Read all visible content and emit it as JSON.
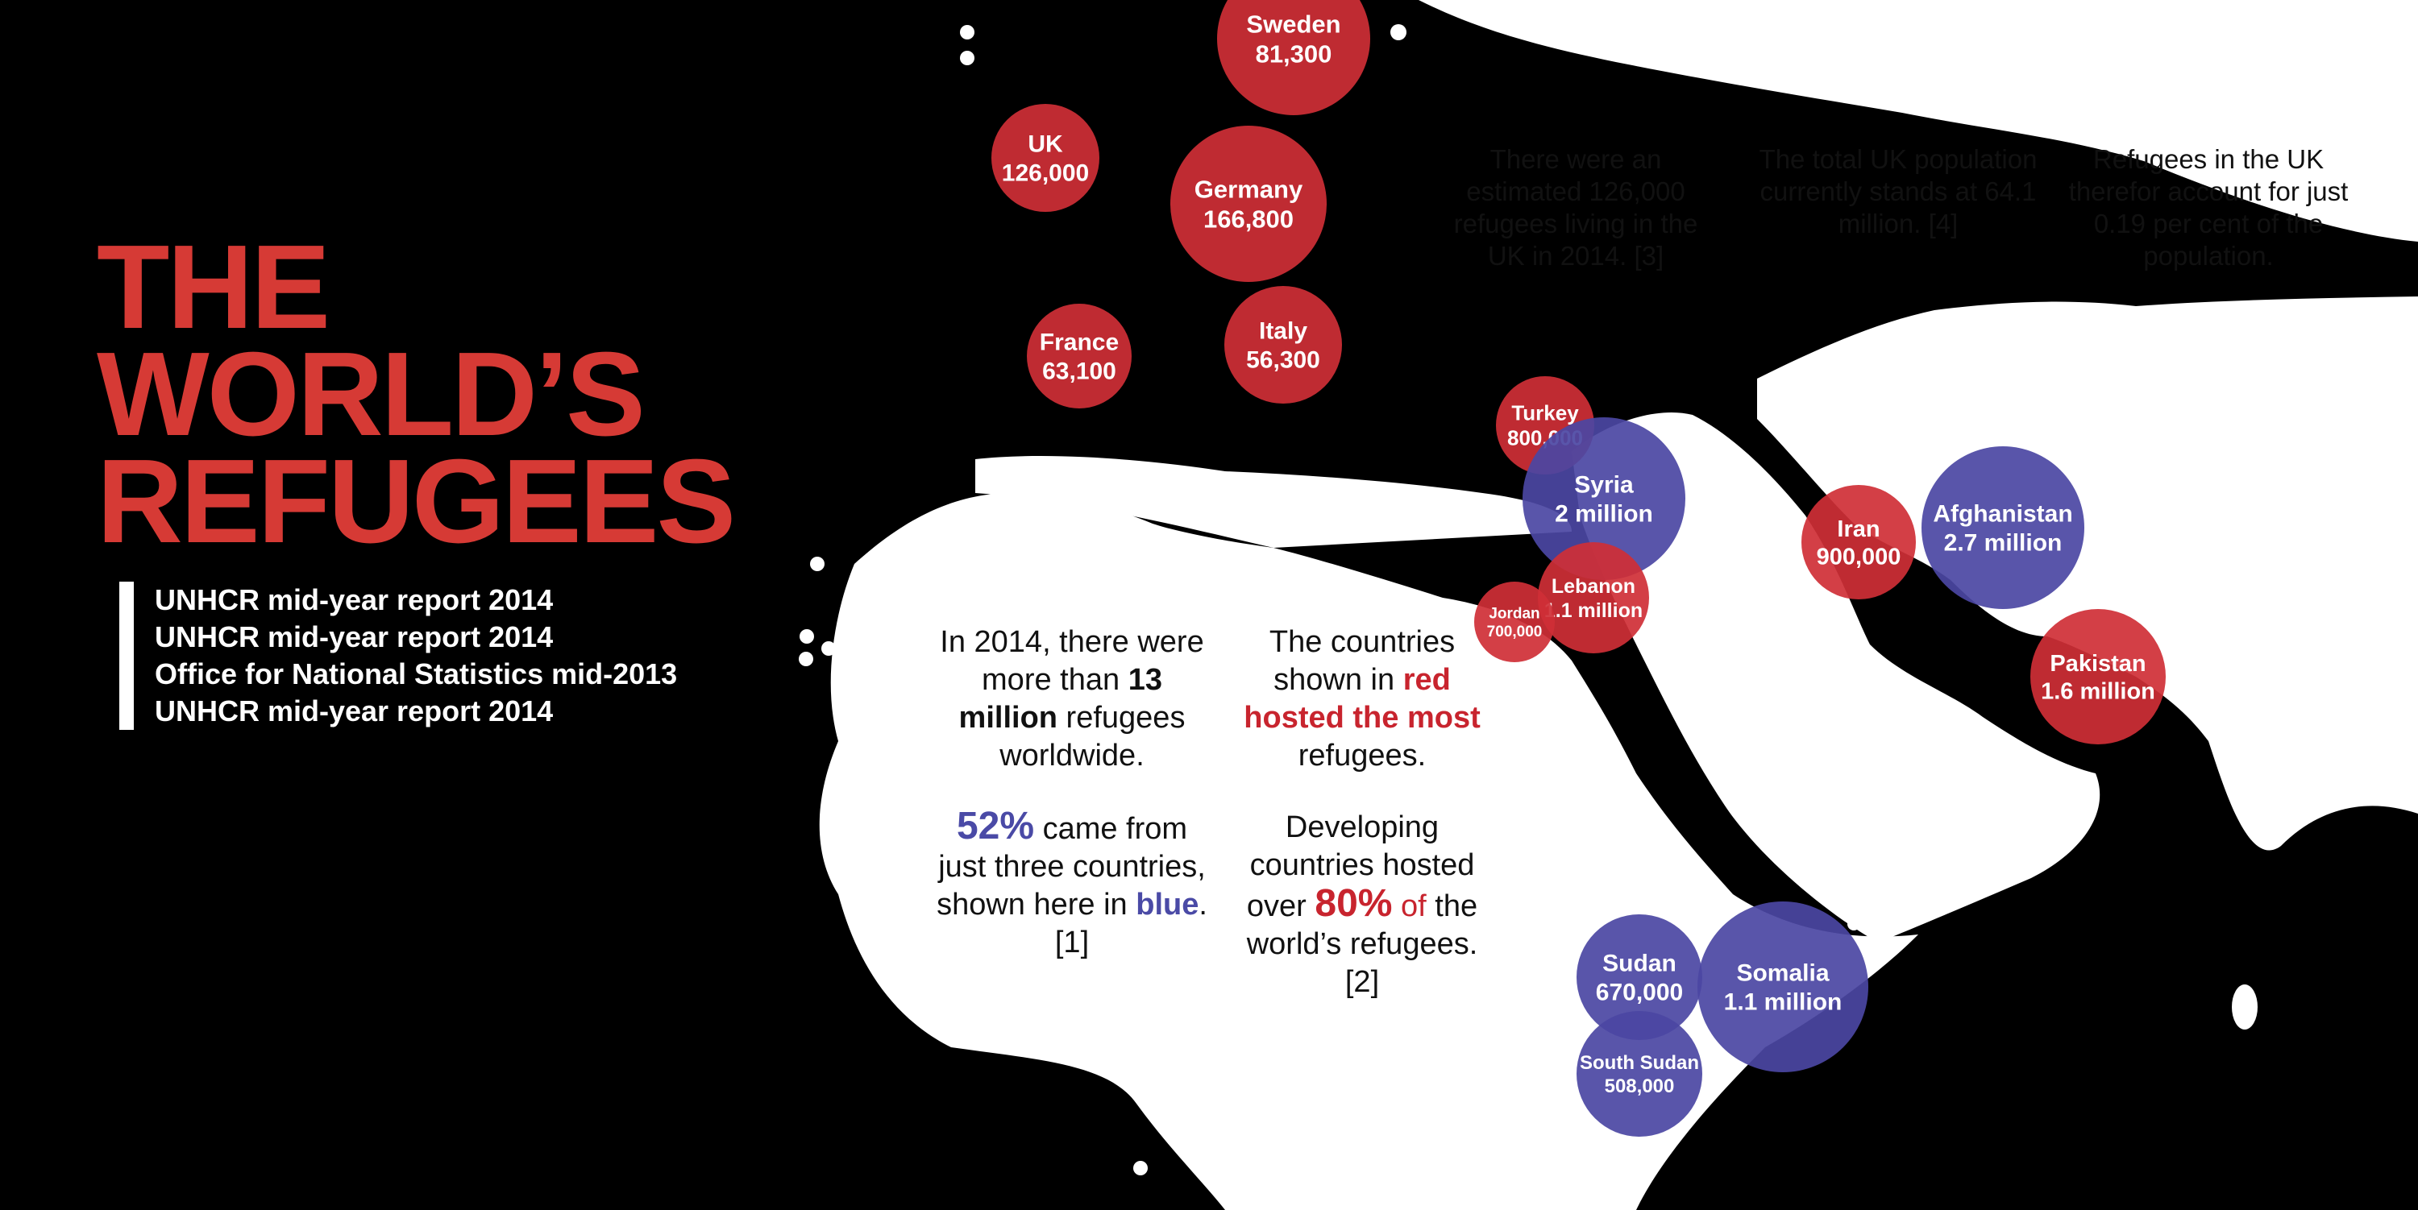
{
  "title": {
    "line1": "THE WORLD’S",
    "line2": "REFUGEES"
  },
  "sources": [
    "UNHCR mid-year report 2014",
    "UNHCR mid-year report 2014",
    "Office for National Statistics mid-2013",
    "UNHCR mid-year report 2014"
  ],
  "colors": {
    "background": "#000000",
    "land": "#ffffff",
    "title": "#d63a35",
    "host": "#cf2f36",
    "origin": "#4b46a3"
  },
  "notes": {
    "uk_refugees": "There were an estimated 126,000 refugees living in the UK in 2014. [3]",
    "uk_population": "The total UK population currently stands at 64.1 million. [4]",
    "uk_share": "Refugees in the UK therefor account for just 0.19 per cent of the population."
  },
  "facts": {
    "p1": {
      "a": "In 2014, there were more than ",
      "b": "13 million",
      "c": " refugees worldwide."
    },
    "p2": {
      "a": "52%",
      "b": " came from just three countries, shown here in ",
      "c": "blue",
      "d": ". [1]"
    },
    "p3": {
      "a": "The countries shown in ",
      "b": "red hosted the most",
      "c": " refugees."
    },
    "p4": {
      "a": "Developing countries hosted over ",
      "b": "80%",
      "c": " of",
      "d": " the world’s refugees. [2]"
    }
  },
  "markers": [
    {
      "id": "sweden",
      "group": "host",
      "name": "Sweden",
      "value": "81,300"
    },
    {
      "id": "uk",
      "group": "host",
      "name": "UK",
      "value": "126,000"
    },
    {
      "id": "germany",
      "group": "host",
      "name": "Germany",
      "value": "166,800"
    },
    {
      "id": "france",
      "group": "host",
      "name": "France",
      "value": "63,100"
    },
    {
      "id": "italy",
      "group": "host",
      "name": "Italy",
      "value": "56,300"
    },
    {
      "id": "turkey",
      "group": "host",
      "name": "Turkey",
      "value": "800,000"
    },
    {
      "id": "syria",
      "group": "origin",
      "name": "Syria",
      "value": "2 million"
    },
    {
      "id": "lebanon",
      "group": "host",
      "name": "Lebanon",
      "value": "1.1 million"
    },
    {
      "id": "jordan",
      "group": "host",
      "name": "Jordan",
      "value": "700,000"
    },
    {
      "id": "iran",
      "group": "host",
      "name": "Iran",
      "value": "900,000"
    },
    {
      "id": "afghanistan",
      "group": "origin",
      "name": "Afghanistan",
      "value": "2.7 million"
    },
    {
      "id": "pakistan",
      "group": "host",
      "name": "Pakistan",
      "value": "1.6 million"
    },
    {
      "id": "sudan",
      "group": "origin",
      "name": "Sudan",
      "value": "670,000"
    },
    {
      "id": "somalia",
      "group": "origin",
      "name": "Somalia",
      "value": "1.1 million"
    },
    {
      "id": "south_sudan",
      "group": "origin",
      "name": "South Sudan",
      "value": "508,000"
    }
  ]
}
